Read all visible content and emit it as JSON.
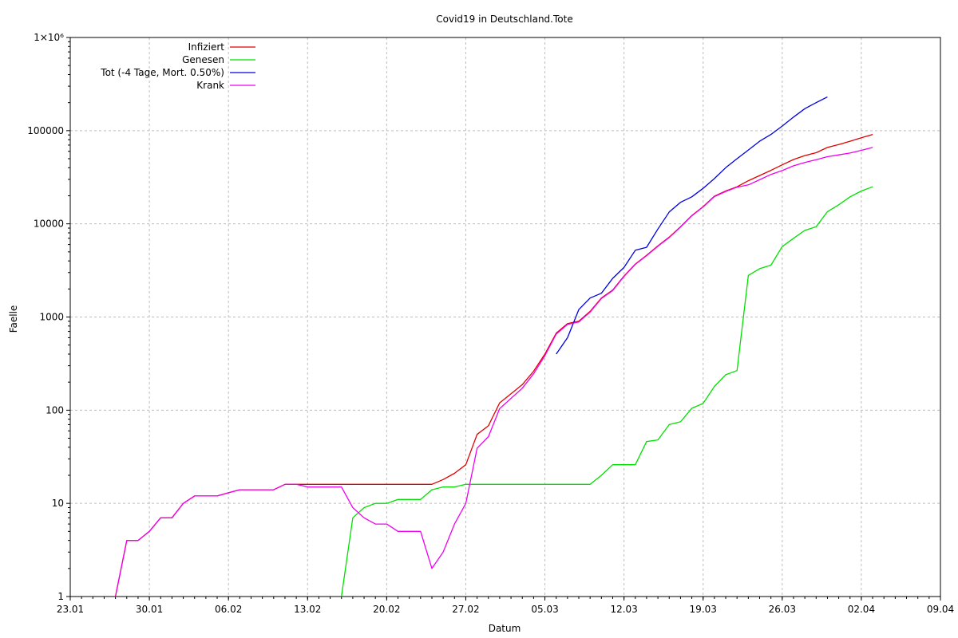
{
  "chart_data": {
    "type": "line",
    "title": "Covid19 in Deutschland.Tote",
    "xlabel": "Datum",
    "ylabel": "Faelle",
    "y_scale": "log",
    "ylim": [
      1,
      1000000
    ],
    "y_ticks": [
      {
        "value": 1,
        "label": "1"
      },
      {
        "value": 10,
        "label": "10"
      },
      {
        "value": 100,
        "label": "100"
      },
      {
        "value": 1000,
        "label": "1000"
      },
      {
        "value": 10000,
        "label": "10000"
      },
      {
        "value": 100000,
        "label": "100000"
      },
      {
        "value": 1000000,
        "label": "1×10⁶"
      }
    ],
    "xlim": [
      "2020-01-23",
      "2020-04-09"
    ],
    "x_ticks": [
      {
        "value": "2020-01-23",
        "label": "23.01"
      },
      {
        "value": "2020-01-30",
        "label": "30.01"
      },
      {
        "value": "2020-02-06",
        "label": "06.02"
      },
      {
        "value": "2020-02-13",
        "label": "13.02"
      },
      {
        "value": "2020-02-20",
        "label": "20.02"
      },
      {
        "value": "2020-02-27",
        "label": "27.02"
      },
      {
        "value": "2020-03-05",
        "label": "05.03"
      },
      {
        "value": "2020-03-12",
        "label": "12.03"
      },
      {
        "value": "2020-03-19",
        "label": "19.03"
      },
      {
        "value": "2020-03-26",
        "label": "26.03"
      },
      {
        "value": "2020-04-02",
        "label": "02.04"
      },
      {
        "value": "2020-04-09",
        "label": "09.04"
      }
    ],
    "grid": true,
    "legend_position": "top-left",
    "series": [
      {
        "name": "Infiziert",
        "color": "#e00000",
        "points": [
          [
            "2020-01-27",
            1
          ],
          [
            "2020-01-28",
            4
          ],
          [
            "2020-01-29",
            4
          ],
          [
            "2020-01-30",
            5
          ],
          [
            "2020-01-31",
            7
          ],
          [
            "2020-02-01",
            7
          ],
          [
            "2020-02-02",
            10
          ],
          [
            "2020-02-03",
            12
          ],
          [
            "2020-02-04",
            12
          ],
          [
            "2020-02-05",
            12
          ],
          [
            "2020-02-06",
            13
          ],
          [
            "2020-02-07",
            14
          ],
          [
            "2020-02-08",
            14
          ],
          [
            "2020-02-09",
            14
          ],
          [
            "2020-02-10",
            14
          ],
          [
            "2020-02-11",
            16
          ],
          [
            "2020-02-12",
            16
          ],
          [
            "2020-02-13",
            16
          ],
          [
            "2020-02-14",
            16
          ],
          [
            "2020-02-15",
            16
          ],
          [
            "2020-02-16",
            16
          ],
          [
            "2020-02-17",
            16
          ],
          [
            "2020-02-18",
            16
          ],
          [
            "2020-02-19",
            16
          ],
          [
            "2020-02-20",
            16
          ],
          [
            "2020-02-21",
            16
          ],
          [
            "2020-02-22",
            16
          ],
          [
            "2020-02-23",
            16
          ],
          [
            "2020-02-24",
            16
          ],
          [
            "2020-02-25",
            18
          ],
          [
            "2020-02-26",
            21
          ],
          [
            "2020-02-27",
            26
          ],
          [
            "2020-02-28",
            55
          ],
          [
            "2020-02-29",
            68
          ],
          [
            "2020-03-01",
            120
          ],
          [
            "2020-03-02",
            150
          ],
          [
            "2020-03-03",
            188
          ],
          [
            "2020-03-04",
            262
          ],
          [
            "2020-03-05",
            400
          ],
          [
            "2020-03-06",
            670
          ],
          [
            "2020-03-07",
            850
          ],
          [
            "2020-03-08",
            900
          ],
          [
            "2020-03-09",
            1150
          ],
          [
            "2020-03-10",
            1600
          ],
          [
            "2020-03-11",
            1950
          ],
          [
            "2020-03-12",
            2750
          ],
          [
            "2020-03-13",
            3700
          ],
          [
            "2020-03-14",
            4600
          ],
          [
            "2020-03-15",
            5800
          ],
          [
            "2020-03-16",
            7200
          ],
          [
            "2020-03-17",
            9300
          ],
          [
            "2020-03-18",
            12300
          ],
          [
            "2020-03-19",
            15300
          ],
          [
            "2020-03-20",
            19800
          ],
          [
            "2020-03-21",
            22500
          ],
          [
            "2020-03-22",
            25000
          ],
          [
            "2020-03-23",
            29000
          ],
          [
            "2020-03-24",
            33000
          ],
          [
            "2020-03-25",
            37500
          ],
          [
            "2020-03-26",
            43000
          ],
          [
            "2020-03-27",
            49000
          ],
          [
            "2020-03-28",
            54000
          ],
          [
            "2020-03-29",
            58000
          ],
          [
            "2020-03-30",
            66000
          ],
          [
            "2020-03-31",
            71000
          ],
          [
            "2020-04-01",
            77000
          ],
          [
            "2020-04-02",
            84000
          ],
          [
            "2020-04-03",
            91000
          ]
        ]
      },
      {
        "name": "Genesen",
        "color": "#00e000",
        "points": [
          [
            "2020-02-16",
            1
          ],
          [
            "2020-02-17",
            7
          ],
          [
            "2020-02-18",
            9
          ],
          [
            "2020-02-19",
            10
          ],
          [
            "2020-02-20",
            10
          ],
          [
            "2020-02-21",
            11
          ],
          [
            "2020-02-22",
            11
          ],
          [
            "2020-02-23",
            11
          ],
          [
            "2020-02-24",
            14
          ],
          [
            "2020-02-25",
            15
          ],
          [
            "2020-02-26",
            15
          ],
          [
            "2020-02-27",
            16
          ],
          [
            "2020-02-28",
            16
          ],
          [
            "2020-02-29",
            16
          ],
          [
            "2020-03-01",
            16
          ],
          [
            "2020-03-02",
            16
          ],
          [
            "2020-03-03",
            16
          ],
          [
            "2020-03-04",
            16
          ],
          [
            "2020-03-05",
            16
          ],
          [
            "2020-03-06",
            16
          ],
          [
            "2020-03-07",
            16
          ],
          [
            "2020-03-08",
            16
          ],
          [
            "2020-03-09",
            16
          ],
          [
            "2020-03-10",
            20
          ],
          [
            "2020-03-11",
            26
          ],
          [
            "2020-03-12",
            26
          ],
          [
            "2020-03-13",
            26
          ],
          [
            "2020-03-14",
            46
          ],
          [
            "2020-03-15",
            48
          ],
          [
            "2020-03-16",
            70
          ],
          [
            "2020-03-17",
            75
          ],
          [
            "2020-03-18",
            105
          ],
          [
            "2020-03-19",
            118
          ],
          [
            "2020-03-20",
            180
          ],
          [
            "2020-03-21",
            240
          ],
          [
            "2020-03-22",
            266
          ],
          [
            "2020-03-23",
            2800
          ],
          [
            "2020-03-24",
            3300
          ],
          [
            "2020-03-25",
            3600
          ],
          [
            "2020-03-26",
            5700
          ],
          [
            "2020-03-27",
            7000
          ],
          [
            "2020-03-28",
            8500
          ],
          [
            "2020-03-29",
            9300
          ],
          [
            "2020-03-30",
            13500
          ],
          [
            "2020-03-31",
            16000
          ],
          [
            "2020-04-01",
            19500
          ],
          [
            "2020-04-02",
            22500
          ],
          [
            "2020-04-03",
            25000
          ]
        ]
      },
      {
        "name": "Tot (-4 Tage, Mort. 0.50%)",
        "color": "#0000e0",
        "points": [
          [
            "2020-03-06",
            400
          ],
          [
            "2020-03-07",
            600
          ],
          [
            "2020-03-08",
            1200
          ],
          [
            "2020-03-09",
            1600
          ],
          [
            "2020-03-10",
            1800
          ],
          [
            "2020-03-11",
            2600
          ],
          [
            "2020-03-12",
            3400
          ],
          [
            "2020-03-13",
            5200
          ],
          [
            "2020-03-14",
            5600
          ],
          [
            "2020-03-15",
            8800
          ],
          [
            "2020-03-16",
            13400
          ],
          [
            "2020-03-17",
            17000
          ],
          [
            "2020-03-18",
            19500
          ],
          [
            "2020-03-19",
            24000
          ],
          [
            "2020-03-20",
            30600
          ],
          [
            "2020-03-21",
            40000
          ],
          [
            "2020-03-22",
            50000
          ],
          [
            "2020-03-23",
            62000
          ],
          [
            "2020-03-24",
            77000
          ],
          [
            "2020-03-25",
            91000
          ],
          [
            "2020-03-26",
            112000
          ],
          [
            "2020-03-27",
            140000
          ],
          [
            "2020-03-28",
            172000
          ],
          [
            "2020-03-29",
            200000
          ],
          [
            "2020-03-30",
            230000
          ]
        ]
      },
      {
        "name": "Krank",
        "color": "#f000f0",
        "points": [
          [
            "2020-01-27",
            1
          ],
          [
            "2020-01-28",
            4
          ],
          [
            "2020-01-29",
            4
          ],
          [
            "2020-01-30",
            5
          ],
          [
            "2020-01-31",
            7
          ],
          [
            "2020-02-01",
            7
          ],
          [
            "2020-02-02",
            10
          ],
          [
            "2020-02-03",
            12
          ],
          [
            "2020-02-04",
            12
          ],
          [
            "2020-02-05",
            12
          ],
          [
            "2020-02-06",
            13
          ],
          [
            "2020-02-07",
            14
          ],
          [
            "2020-02-08",
            14
          ],
          [
            "2020-02-09",
            14
          ],
          [
            "2020-02-10",
            14
          ],
          [
            "2020-02-11",
            16
          ],
          [
            "2020-02-12",
            16
          ],
          [
            "2020-02-13",
            15
          ],
          [
            "2020-02-14",
            15
          ],
          [
            "2020-02-15",
            15
          ],
          [
            "2020-02-16",
            15
          ],
          [
            "2020-02-17",
            9
          ],
          [
            "2020-02-18",
            7
          ],
          [
            "2020-02-19",
            6
          ],
          [
            "2020-02-20",
            6
          ],
          [
            "2020-02-21",
            5
          ],
          [
            "2020-02-22",
            5
          ],
          [
            "2020-02-23",
            5
          ],
          [
            "2020-02-24",
            2
          ],
          [
            "2020-02-25",
            3
          ],
          [
            "2020-02-26",
            6
          ],
          [
            "2020-02-27",
            10
          ],
          [
            "2020-02-28",
            39
          ],
          [
            "2020-02-29",
            52
          ],
          [
            "2020-03-01",
            104
          ],
          [
            "2020-03-02",
            134
          ],
          [
            "2020-03-03",
            172
          ],
          [
            "2020-03-04",
            246
          ],
          [
            "2020-03-05",
            384
          ],
          [
            "2020-03-06",
            654
          ],
          [
            "2020-03-07",
            834
          ],
          [
            "2020-03-08",
            884
          ],
          [
            "2020-03-09",
            1130
          ],
          [
            "2020-03-10",
            1580
          ],
          [
            "2020-03-11",
            1924
          ],
          [
            "2020-03-12",
            2724
          ],
          [
            "2020-03-13",
            3674
          ],
          [
            "2020-03-14",
            4554
          ],
          [
            "2020-03-15",
            5752
          ],
          [
            "2020-03-16",
            7130
          ],
          [
            "2020-03-17",
            9225
          ],
          [
            "2020-03-18",
            12195
          ],
          [
            "2020-03-19",
            15182
          ],
          [
            "2020-03-20",
            19620
          ],
          [
            "2020-03-21",
            22260
          ],
          [
            "2020-03-22",
            24734
          ],
          [
            "2020-03-23",
            26200
          ],
          [
            "2020-03-24",
            29700
          ],
          [
            "2020-03-25",
            33900
          ],
          [
            "2020-03-26",
            37300
          ],
          [
            "2020-03-27",
            42000
          ],
          [
            "2020-03-28",
            45500
          ],
          [
            "2020-03-29",
            48700
          ],
          [
            "2020-03-30",
            52500
          ],
          [
            "2020-03-31",
            55000
          ],
          [
            "2020-04-01",
            57500
          ],
          [
            "2020-04-02",
            61500
          ],
          [
            "2020-04-03",
            66000
          ]
        ]
      }
    ]
  }
}
